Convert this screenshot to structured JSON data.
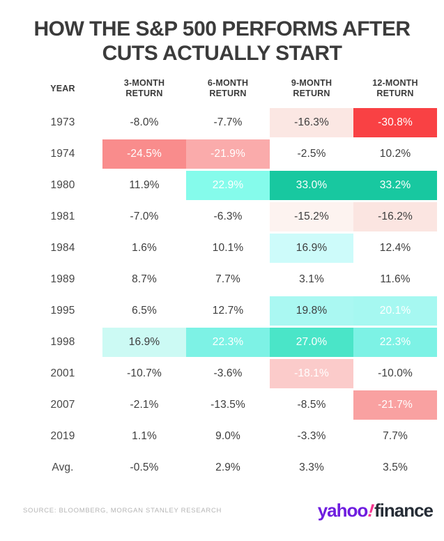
{
  "title": {
    "line1": "HOW THE S&P 500 PERFORMS AFTER",
    "line2": "CUTS ACTUALLY START"
  },
  "table": {
    "header": {
      "year": "YEAR",
      "cols": [
        "3-MONTH\nRETURN",
        "6-MONTH\nRETURN",
        "9-MONTH\nRETURN",
        "12-MONTH\nRETURN"
      ]
    },
    "rows": [
      {
        "year": "1973",
        "values": [
          "-8.0%",
          "-7.7%",
          "-16.3%",
          "-30.8%"
        ],
        "bg": [
          "",
          "",
          "#fbe7e3",
          "#f94144"
        ],
        "white": [
          false,
          false,
          false,
          true
        ]
      },
      {
        "year": "1974",
        "values": [
          "-24.5%",
          "-21.9%",
          "-2.5%",
          "10.2%"
        ],
        "bg": [
          "#f98c8c",
          "#faabab",
          "",
          ""
        ],
        "white": [
          true,
          true,
          false,
          false
        ]
      },
      {
        "year": "1980",
        "values": [
          "11.9%",
          "22.9%",
          "33.0%",
          "33.2%"
        ],
        "bg": [
          "",
          "#85fbeb",
          "#18c8a0",
          "#18c8a0"
        ],
        "white": [
          false,
          true,
          true,
          true
        ]
      },
      {
        "year": "1981",
        "values": [
          "-7.0%",
          "-6.3%",
          "-15.2%",
          "-16.2%"
        ],
        "bg": [
          "",
          "",
          "#fdf3f0",
          "#fbe5e1"
        ],
        "white": [
          false,
          false,
          false,
          false
        ]
      },
      {
        "year": "1984",
        "values": [
          "1.6%",
          "10.1%",
          "16.9%",
          "12.4%"
        ],
        "bg": [
          "",
          "",
          "#cdfbfa",
          ""
        ],
        "white": [
          false,
          false,
          false,
          false
        ]
      },
      {
        "year": "1989",
        "values": [
          "8.7%",
          "7.7%",
          "3.1%",
          "11.6%"
        ],
        "bg": [
          "",
          "",
          "",
          ""
        ],
        "white": [
          false,
          false,
          false,
          false
        ]
      },
      {
        "year": "1995",
        "values": [
          "6.5%",
          "12.7%",
          "19.8%",
          "20.1%"
        ],
        "bg": [
          "",
          "",
          "#aaf8f2",
          "#a6f8f1"
        ],
        "white": [
          false,
          false,
          false,
          true
        ]
      },
      {
        "year": "1998",
        "values": [
          "16.9%",
          "22.3%",
          "27.0%",
          "22.3%"
        ],
        "bg": [
          "#ccfaf4",
          "#7df2e5",
          "#4ae5c8",
          "#7df2e5"
        ],
        "white": [
          false,
          true,
          true,
          true
        ]
      },
      {
        "year": "2001",
        "values": [
          "-10.7%",
          "-3.6%",
          "-18.1%",
          "-10.0%"
        ],
        "bg": [
          "",
          "",
          "#fbcbca",
          ""
        ],
        "white": [
          false,
          false,
          true,
          false
        ]
      },
      {
        "year": "2007",
        "values": [
          "-2.1%",
          "-13.5%",
          "-8.5%",
          "-21.7%"
        ],
        "bg": [
          "",
          "",
          "",
          "#f9a1a1"
        ],
        "white": [
          false,
          false,
          false,
          true
        ]
      },
      {
        "year": "2019",
        "values": [
          "1.1%",
          "9.0%",
          "-3.3%",
          "7.7%"
        ],
        "bg": [
          "",
          "",
          "",
          ""
        ],
        "white": [
          false,
          false,
          false,
          false
        ]
      },
      {
        "year": "Avg.",
        "values": [
          "-0.5%",
          "2.9%",
          "3.3%",
          "3.5%"
        ],
        "bg": [
          "",
          "",
          "",
          ""
        ],
        "white": [
          false,
          false,
          false,
          false
        ]
      }
    ]
  },
  "footer": {
    "source": "SOURCE: BLOOMBERG, MORGAN STANLEY RESEARCH",
    "logo": {
      "yahoo": "yahoo",
      "bang": "!",
      "finance": "finance"
    }
  },
  "colors": {
    "title_text": "#3b3b3b",
    "negative_strong": "#f94144",
    "negative_medium": "#f98c8c",
    "negative_light": "#fbe7e3",
    "positive_strong": "#18c8a0",
    "positive_medium": "#7df2e5",
    "positive_light": "#ccfaf4",
    "logo_purple": "#6f1ddf",
    "logo_pink": "#f5348e",
    "logo_dark": "#262d36",
    "source_text": "#b5b5b5"
  },
  "chart_data": {
    "type": "heatmap",
    "title": "HOW THE S&P 500 PERFORMS AFTER CUTS ACTUALLY START",
    "columns": [
      "3-Month Return",
      "6-Month Return",
      "9-Month Return",
      "12-Month Return"
    ],
    "years": [
      "1973",
      "1974",
      "1980",
      "1981",
      "1984",
      "1989",
      "1995",
      "1998",
      "2001",
      "2007",
      "2019",
      "Avg."
    ],
    "values_pct": [
      [
        -8.0,
        -7.7,
        -16.3,
        -30.8
      ],
      [
        -24.5,
        -21.9,
        -2.5,
        10.2
      ],
      [
        11.9,
        22.9,
        33.0,
        33.2
      ],
      [
        -7.0,
        -6.3,
        -15.2,
        -16.2
      ],
      [
        1.6,
        10.1,
        16.9,
        12.4
      ],
      [
        8.7,
        7.7,
        3.1,
        11.6
      ],
      [
        6.5,
        12.7,
        19.8,
        20.1
      ],
      [
        16.9,
        22.3,
        27.0,
        22.3
      ],
      [
        -10.7,
        -3.6,
        -18.1,
        -10.0
      ],
      [
        -2.1,
        -13.5,
        -8.5,
        -21.7
      ],
      [
        1.1,
        9.0,
        -3.3,
        7.7
      ],
      [
        -0.5,
        2.9,
        3.3,
        3.5
      ]
    ],
    "legend_position": "none",
    "source": "SOURCE: BLOOMBERG, MORGAN STANLEY RESEARCH",
    "color_scale": "red (negative) to teal (positive)"
  }
}
